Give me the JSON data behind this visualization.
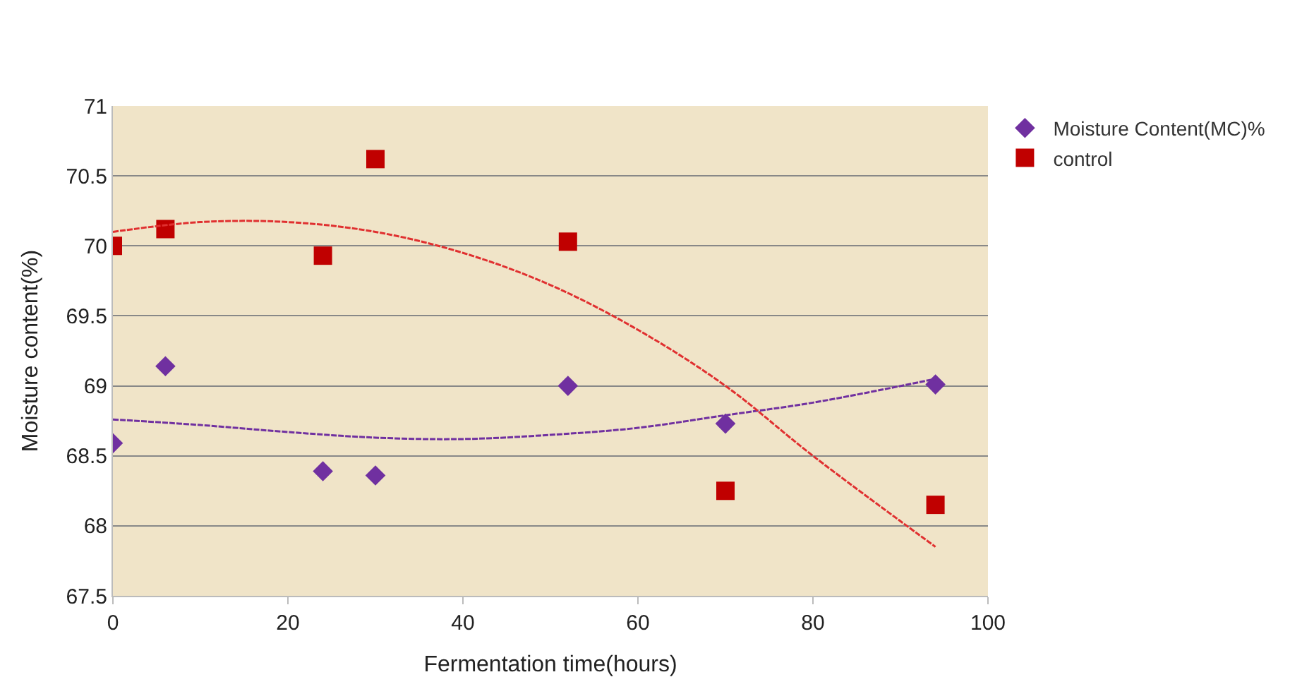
{
  "chart_data": {
    "type": "scatter",
    "xlabel": "Fermentation time(hours)",
    "ylabel": "Moisture content(%)",
    "xlim": [
      0,
      100
    ],
    "xticks": [
      0,
      20,
      40,
      60,
      80,
      100
    ],
    "ylim": [
      67.5,
      71
    ],
    "yticks": [
      67.5,
      68,
      68.5,
      69,
      69.5,
      70,
      70.5,
      71
    ],
    "grid": "y",
    "legend": "top right",
    "series": [
      {
        "name": "Moisture Content(MC)%",
        "color": "#7030a0",
        "marker": "diamond",
        "x": [
          0,
          6,
          24,
          30,
          52,
          70,
          94
        ],
        "values": [
          68.59,
          69.14,
          68.39,
          68.36,
          69.0,
          68.73,
          69.01
        ]
      },
      {
        "name": "control",
        "color": "#c00000",
        "marker": "square",
        "x": [
          0,
          6,
          24,
          30,
          52,
          70,
          94
        ],
        "values": [
          70.0,
          70.12,
          69.93,
          70.62,
          70.03,
          68.25,
          68.15
        ]
      },
      {
        "type": "line",
        "color": "#7030a0",
        "line_style": "dashed",
        "x": [
          0,
          10,
          20,
          30,
          40,
          50,
          60,
          70,
          80,
          94
        ],
        "values": [
          68.76,
          68.72,
          68.67,
          68.63,
          68.62,
          68.65,
          68.7,
          68.79,
          68.88,
          69.05
        ]
      },
      {
        "type": "line",
        "color": "#e03030",
        "line_style": "dashed",
        "x": [
          0,
          10,
          20,
          30,
          40,
          50,
          60,
          70,
          80,
          94
        ],
        "values": [
          70.1,
          70.17,
          70.17,
          70.1,
          69.95,
          69.72,
          69.4,
          69.0,
          68.5,
          67.85
        ]
      }
    ]
  }
}
